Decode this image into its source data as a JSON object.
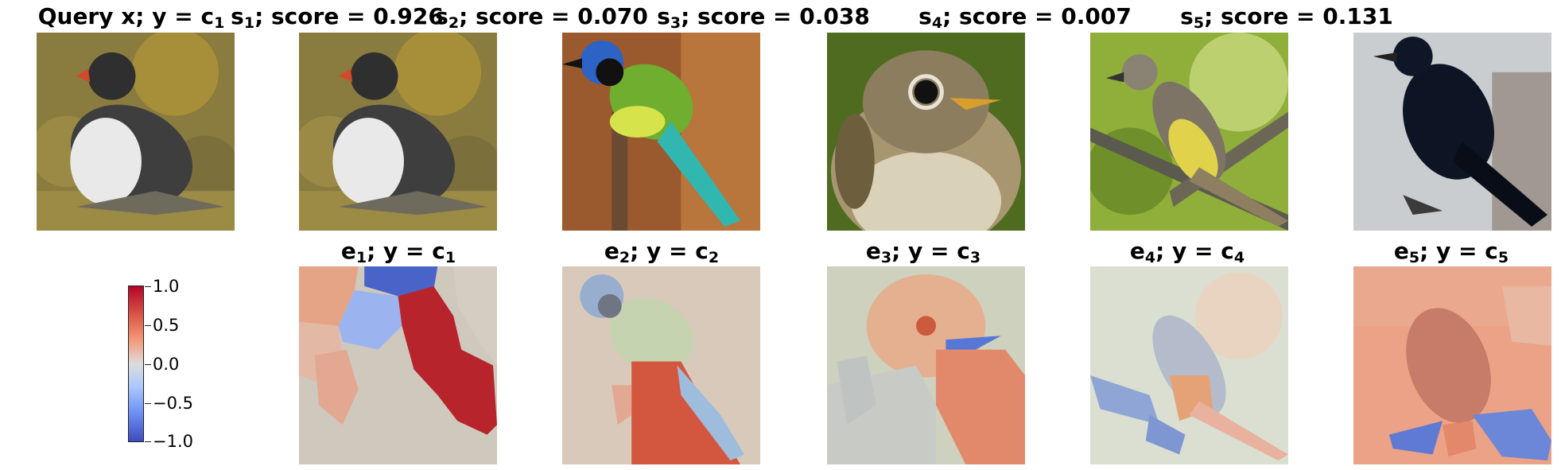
{
  "top_row": [
    {
      "prefix": "Query x; y = c",
      "sub": "1",
      "suffix": "",
      "subject": "puffin-photo"
    },
    {
      "prefix": "s",
      "sub": "1",
      "suffix": "; score = 0.926",
      "subject": "puffin-photo"
    },
    {
      "prefix": "s",
      "sub": "2",
      "suffix": "; score = 0.070",
      "subject": "green-jay-photo"
    },
    {
      "prefix": "s",
      "sub": "3",
      "suffix": "; score = 0.038",
      "subject": "flycatcher-photo"
    },
    {
      "prefix": "s",
      "sub": "4",
      "suffix": "; score = 0.007",
      "subject": "yellow-belly-bird-photo"
    },
    {
      "prefix": "s",
      "sub": "5",
      "suffix": "; score = 0.131",
      "subject": "blackbird-photo"
    }
  ],
  "bottom_row": [
    {
      "prefix": "e",
      "sub": "1",
      "mid": "; y = c",
      "sub2": "1"
    },
    {
      "prefix": "e",
      "sub": "2",
      "mid": "; y = c",
      "sub2": "2"
    },
    {
      "prefix": "e",
      "sub": "3",
      "mid": "; y = c",
      "sub2": "3"
    },
    {
      "prefix": "e",
      "sub": "4",
      "mid": "; y = c",
      "sub2": "4"
    },
    {
      "prefix": "e",
      "sub": "5",
      "mid": "; y = c",
      "sub2": "5"
    }
  ],
  "colorbar": {
    "ticks": [
      "1.0",
      "0.5",
      "0.0",
      "−0.5",
      "−1.0"
    ],
    "colormap": "coolwarm",
    "colors": {
      "max": "#b40426",
      "mid": "#dddddd",
      "min": "#3b4cc0"
    }
  }
}
